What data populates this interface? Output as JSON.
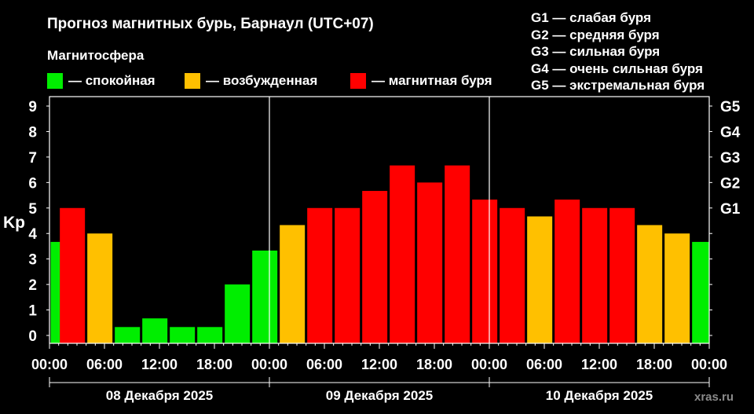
{
  "title": "Прогноз магнитных бурь, Барнаул (UTC+07)",
  "magnetosphere_title": "Магнитосфера",
  "legend": [
    {
      "label": "— спокойная",
      "color": "#00ee00"
    },
    {
      "label": "— возбужденная",
      "color": "#ffc000"
    },
    {
      "label": "— магнитная буря",
      "color": "#ff0000"
    }
  ],
  "g_scale": [
    "G1 — слабая буря",
    "G2 — средняя буря",
    "G3 — сильная буря",
    "G4 — очень сильная буря",
    "G5 — экстремальная буря"
  ],
  "dates": [
    "08 Декабря 2025",
    "09 Декабря 2025",
    "10 Декабря 2025"
  ],
  "watermark": "xras.ru",
  "chart_data": {
    "type": "bar",
    "ylabel": "Kp",
    "ylim": [
      0,
      9
    ],
    "yticks": [
      0,
      1,
      2,
      3,
      4,
      5,
      6,
      7,
      8,
      9
    ],
    "right_axis": [
      {
        "label": "G1",
        "kp": 5
      },
      {
        "label": "G2",
        "kp": 6
      },
      {
        "label": "G3",
        "kp": 7
      },
      {
        "label": "G4",
        "kp": 8
      },
      {
        "label": "G5",
        "kp": 9
      }
    ],
    "x_tick_labels": [
      "00:00",
      "06:00",
      "12:00",
      "18:00",
      "00:00",
      "06:00",
      "12:00",
      "18:00",
      "00:00",
      "06:00",
      "12:00",
      "18:00",
      "00:00"
    ],
    "x_tick_hours": [
      0,
      6,
      12,
      18,
      24,
      30,
      36,
      42,
      48,
      54,
      60,
      66,
      72
    ],
    "day_separators_hours": [
      24,
      48
    ],
    "bars": [
      {
        "start_hour": 0,
        "kp": 3.67,
        "level": "quiet"
      },
      {
        "start_hour": 1,
        "kp": 5.0,
        "level": "storm"
      },
      {
        "start_hour": 4,
        "kp": 4.0,
        "level": "active"
      },
      {
        "start_hour": 7,
        "kp": 0.33,
        "level": "quiet"
      },
      {
        "start_hour": 10,
        "kp": 0.67,
        "level": "quiet"
      },
      {
        "start_hour": 13,
        "kp": 0.33,
        "level": "quiet"
      },
      {
        "start_hour": 16,
        "kp": 0.33,
        "level": "quiet"
      },
      {
        "start_hour": 19,
        "kp": 2.0,
        "level": "quiet"
      },
      {
        "start_hour": 22,
        "kp": 3.33,
        "level": "quiet"
      },
      {
        "start_hour": 25,
        "kp": 4.33,
        "level": "active"
      },
      {
        "start_hour": 28,
        "kp": 5.0,
        "level": "storm"
      },
      {
        "start_hour": 31,
        "kp": 5.0,
        "level": "storm"
      },
      {
        "start_hour": 34,
        "kp": 5.67,
        "level": "storm"
      },
      {
        "start_hour": 37,
        "kp": 6.67,
        "level": "storm"
      },
      {
        "start_hour": 40,
        "kp": 6.0,
        "level": "storm"
      },
      {
        "start_hour": 43,
        "kp": 6.67,
        "level": "storm"
      },
      {
        "start_hour": 46,
        "kp": 5.33,
        "level": "storm"
      },
      {
        "start_hour": 49,
        "kp": 5.0,
        "level": "storm"
      },
      {
        "start_hour": 52,
        "kp": 4.67,
        "level": "active"
      },
      {
        "start_hour": 55,
        "kp": 5.33,
        "level": "storm"
      },
      {
        "start_hour": 58,
        "kp": 5.0,
        "level": "storm"
      },
      {
        "start_hour": 61,
        "kp": 5.0,
        "level": "storm"
      },
      {
        "start_hour": 64,
        "kp": 4.33,
        "level": "active"
      },
      {
        "start_hour": 67,
        "kp": 4.0,
        "level": "active"
      },
      {
        "start_hour": 70,
        "kp": 3.67,
        "level": "quiet"
      }
    ],
    "colors": {
      "quiet": "#00ee00",
      "active": "#ffc000",
      "storm": "#ff0000"
    }
  }
}
